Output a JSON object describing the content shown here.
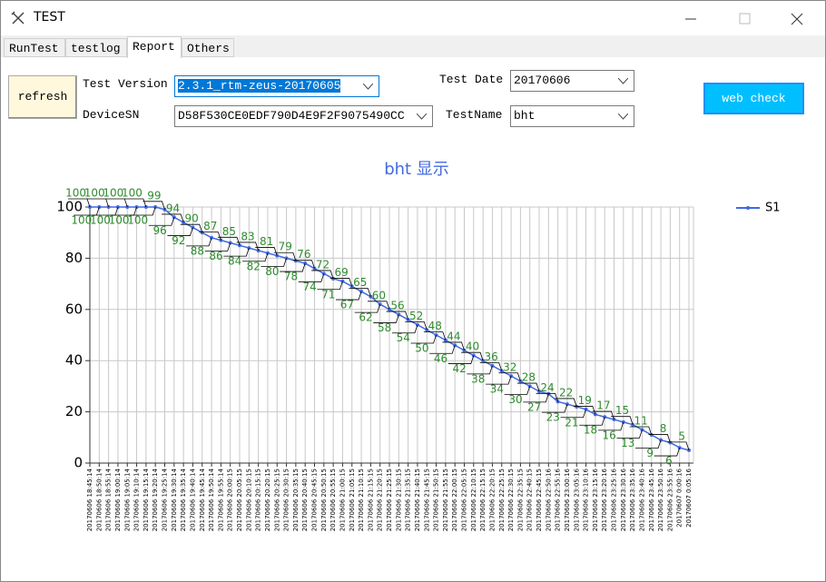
{
  "window": {
    "title": "TEST"
  },
  "tabs": [
    "RunTest",
    "testlog",
    "Report",
    "Others"
  ],
  "form": {
    "refresh": "refresh",
    "test_version_label": "Test Version",
    "test_version": "2.3.1_rtm-zeus-20170605",
    "device_sn_label": "DeviceSN",
    "device_sn": "D58F530CE0EDF790D4E9F2F9075490CC",
    "test_date_label": "Test Date",
    "test_date": "20170606",
    "test_name_label": "TestName",
    "test_name": "bht",
    "web_check": "web check"
  },
  "chart_data": {
    "type": "line",
    "title": "bht 显示",
    "categories": [
      "20170606 18:45:14",
      "20170606 18:50:14",
      "20170606 18:55:14",
      "20170606 19:00:14",
      "20170606 19:05:14",
      "20170606 19:10:14",
      "20170606 19:15:14",
      "20170606 19:20:14",
      "20170606 19:25:14",
      "20170606 19:30:14",
      "20170606 19:35:14",
      "20170606 19:40:14",
      "20170606 19:45:14",
      "20170606 19:50:14",
      "20170606 19:55:14",
      "20170606 20:00:15",
      "20170606 20:05:15",
      "20170606 20:10:15",
      "20170606 20:15:15",
      "20170606 20:20:15",
      "20170606 20:25:15",
      "20170606 20:30:15",
      "20170606 20:35:15",
      "20170606 20:40:15",
      "20170606 20:45:15",
      "20170606 20:50:15",
      "20170606 20:55:15",
      "20170606 21:00:15",
      "20170606 21:05:15",
      "20170606 21:10:15",
      "20170606 21:15:15",
      "20170606 21:20:15",
      "20170606 21:25:15",
      "20170606 21:30:15",
      "20170606 21:35:15",
      "20170606 21:40:15",
      "20170606 21:45:15",
      "20170606 21:50:15",
      "20170606 21:55:15",
      "20170606 22:00:15",
      "20170606 22:05:15",
      "20170606 22:10:15",
      "20170606 22:15:15",
      "20170606 22:20:15",
      "20170606 22:25:15",
      "20170606 22:30:15",
      "20170606 22:35:15",
      "20170606 22:40:15",
      "20170606 22:45:15",
      "20170606 22:50:16",
      "20170606 22:55:16",
      "20170606 23:00:16",
      "20170606 23:05:16",
      "20170606 23:10:16",
      "20170606 23:15:16",
      "20170606 23:20:16",
      "20170606 23:25:16",
      "20170606 23:30:16",
      "20170606 23:35:16",
      "20170606 23:40:16",
      "20170606 23:45:16",
      "20170606 23:50:16",
      "20170606 23:55:16",
      "20170607 0:00:16",
      "20170607 0:05:16"
    ],
    "series": [
      {
        "name": "S1",
        "color": "#4169e1",
        "values": [
          100,
          100,
          100,
          100,
          100,
          100,
          100,
          100,
          99,
          96,
          94,
          92,
          90,
          88,
          87,
          86,
          85,
          84,
          83,
          82,
          81,
          80,
          79,
          78,
          76,
          74,
          72,
          71,
          69,
          67,
          65,
          62,
          60,
          58,
          56,
          54,
          52,
          50,
          48,
          46,
          44,
          42,
          40,
          38,
          36,
          34,
          32,
          30,
          28,
          27,
          24,
          23,
          22,
          21,
          19,
          18,
          17,
          16,
          15,
          13,
          11,
          9,
          8,
          6,
          5
        ]
      }
    ],
    "ylim": [
      0,
      100
    ],
    "yticks": [
      0,
      20,
      40,
      60,
      80,
      100
    ],
    "grid": true,
    "legend": "right"
  }
}
